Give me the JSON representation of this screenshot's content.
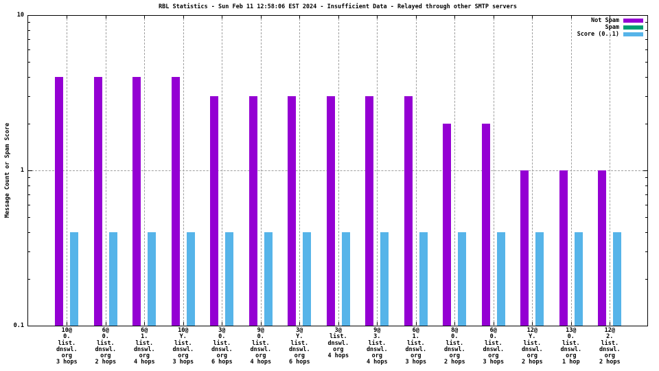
{
  "chart_data": {
    "type": "bar",
    "title": "RBL Statistics - Sun Feb 11 12:58:06 EST 2024 - Insufficient Data - Relayed through other SMTP servers",
    "ylabel": "Message Count or Spam Score",
    "xlabel": "",
    "y_scale": "log",
    "ylim": [
      0.1,
      10
    ],
    "grid": true,
    "legend_position": "top-right-inside",
    "grid_color": "#9e9e9e",
    "axis_color": "#000000",
    "yticks": [
      {
        "value": 10,
        "label": "10"
      },
      {
        "value": 1,
        "label": "1"
      },
      {
        "value": 0.1,
        "label": "0.1"
      }
    ],
    "categories": [
      [
        "10@",
        "0.",
        "list.",
        "dnswl.",
        "org",
        "3 hops"
      ],
      [
        "6@",
        "0.",
        "list.",
        "dnswl.",
        "org",
        "2 hops"
      ],
      [
        "6@",
        "1.",
        "list.",
        "dnswl.",
        "org",
        "4 hops"
      ],
      [
        "10@",
        "Y.",
        "list.",
        "dnswl.",
        "org",
        "3 hops"
      ],
      [
        "3@",
        "0.",
        "list.",
        "dnswl.",
        "org",
        "6 hops"
      ],
      [
        "9@",
        "0.",
        "list.",
        "dnswl.",
        "org",
        "4 hops"
      ],
      [
        "3@",
        "Y.",
        "list.",
        "dnswl.",
        "org",
        "6 hops"
      ],
      [
        "3@",
        "list.",
        "dnswl.",
        "org",
        "4 hops"
      ],
      [
        "9@",
        "3.",
        "list.",
        "dnswl.",
        "org",
        "4 hops"
      ],
      [
        "6@",
        "1.",
        "list.",
        "dnswl.",
        "org",
        "3 hops"
      ],
      [
        "8@",
        "0.",
        "list.",
        "dnswl.",
        "org",
        "2 hops"
      ],
      [
        "6@",
        "0.",
        "list.",
        "dnswl.",
        "org",
        "3 hops"
      ],
      [
        "12@",
        "Y.",
        "list.",
        "dnswl.",
        "org",
        "2 hops"
      ],
      [
        "13@",
        "0.",
        "list.",
        "dnswl.",
        "org",
        "1 hop"
      ],
      [
        "12@",
        "2.",
        "list.",
        "dnswl.",
        "org",
        "2 hops"
      ]
    ],
    "series": [
      {
        "name": "Not Spam",
        "color": "#9400d3",
        "values": [
          4,
          4,
          4,
          4,
          3,
          3,
          3,
          3,
          3,
          3,
          2,
          2,
          1,
          1,
          1
        ]
      },
      {
        "name": "Spam",
        "color": "#009e73",
        "values": [
          0,
          0,
          0,
          0,
          0,
          0,
          0,
          0,
          0,
          0,
          0,
          0,
          0,
          0,
          0
        ]
      },
      {
        "name": "Score (0..1)",
        "color": "#56b4e9",
        "values": [
          0.4,
          0.4,
          0.4,
          0.4,
          0.4,
          0.4,
          0.4,
          0.4,
          0.4,
          0.4,
          0.4,
          0.4,
          0.4,
          0.4,
          0.4
        ]
      }
    ]
  }
}
